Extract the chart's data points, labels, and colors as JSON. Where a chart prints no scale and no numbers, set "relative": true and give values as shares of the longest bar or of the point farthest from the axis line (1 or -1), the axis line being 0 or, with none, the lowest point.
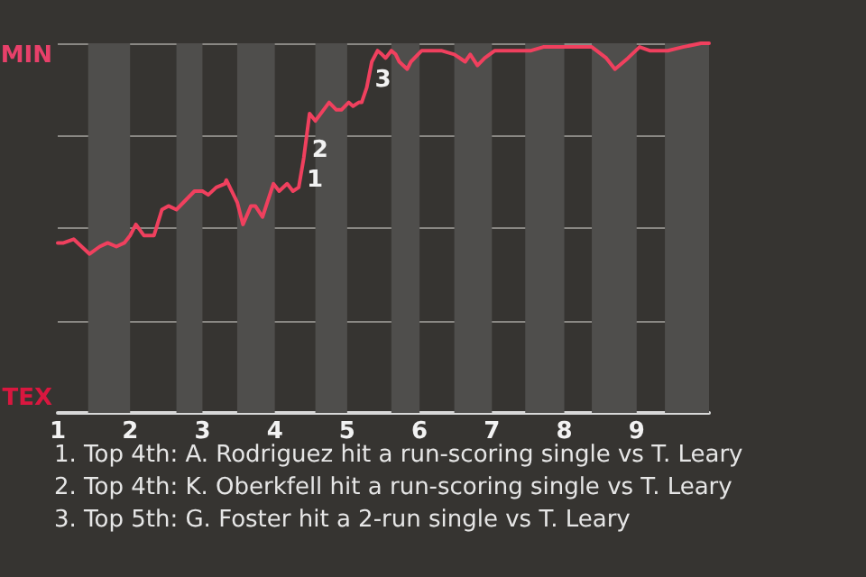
{
  "chart_data": {
    "type": "line",
    "relative": true,
    "x": [
      1.0,
      1.08,
      1.22,
      1.44,
      1.58,
      1.69,
      1.81,
      1.92,
      2.0,
      2.08,
      2.19,
      2.33,
      2.44,
      2.53,
      2.64,
      2.89,
      3.0,
      3.08,
      3.19,
      3.31,
      3.33,
      3.48,
      3.56,
      3.67,
      3.73,
      3.83,
      3.98,
      4.06,
      4.17,
      4.25,
      4.33,
      4.4,
      4.48,
      4.56,
      4.75,
      4.85,
      4.92,
      5.02,
      5.08,
      5.16,
      5.2,
      5.27,
      5.34,
      5.42,
      5.48,
      5.53,
      5.61,
      5.67,
      5.72,
      5.83,
      5.88,
      6.03,
      6.3,
      6.48,
      6.63,
      6.7,
      6.8,
      6.9,
      7.04,
      7.46,
      7.54,
      7.71,
      8.0,
      8.38,
      8.58,
      8.7,
      8.88,
      9.04,
      9.18,
      9.43,
      9.64,
      9.89,
      10.0
    ],
    "series": [
      {
        "color": "#f0405e",
        "values": [
          0.46,
          0.46,
          0.47,
          0.43,
          0.45,
          0.46,
          0.45,
          0.46,
          0.48,
          0.51,
          0.48,
          0.48,
          0.55,
          0.56,
          0.55,
          0.6,
          0.6,
          0.59,
          0.61,
          0.62,
          0.63,
          0.57,
          0.51,
          0.56,
          0.56,
          0.53,
          0.62,
          0.6,
          0.62,
          0.6,
          0.61,
          0.69,
          0.81,
          0.79,
          0.84,
          0.82,
          0.82,
          0.84,
          0.83,
          0.84,
          0.84,
          0.88,
          0.95,
          0.98,
          0.97,
          0.96,
          0.98,
          0.97,
          0.95,
          0.93,
          0.95,
          0.98,
          0.98,
          0.97,
          0.95,
          0.97,
          0.94,
          0.96,
          0.98,
          0.98,
          0.98,
          0.99,
          0.99,
          0.99,
          0.96,
          0.93,
          0.96,
          0.99,
          0.98,
          0.98,
          0.99,
          1.0,
          1.0
        ]
      }
    ],
    "xlim": [
      1,
      10
    ],
    "xticks": [
      1,
      2,
      3,
      4,
      5,
      6,
      7,
      8,
      9
    ],
    "grid": "y",
    "marker": "none",
    "line_style": "solid",
    "bands": [
      {
        "axis": "x",
        "from": 1.42,
        "to": 2,
        "color": "#4f4e4c"
      },
      {
        "axis": "x",
        "from": 2.64,
        "to": 3,
        "color": "#4f4e4c"
      },
      {
        "axis": "x",
        "from": 3.48,
        "to": 4,
        "color": "#4f4e4c"
      },
      {
        "axis": "x",
        "from": 4.56,
        "to": 5,
        "color": "#4f4e4c"
      },
      {
        "axis": "x",
        "from": 5.61,
        "to": 6,
        "color": "#4f4e4c"
      },
      {
        "axis": "x",
        "from": 6.48,
        "to": 7,
        "color": "#4f4e4c"
      },
      {
        "axis": "x",
        "from": 7.46,
        "to": 8,
        "color": "#4f4e4c"
      },
      {
        "axis": "x",
        "from": 8.38,
        "to": 9,
        "color": "#4f4e4c"
      },
      {
        "axis": "x",
        "from": 9.39,
        "to": 10,
        "color": "#4f4e4c"
      }
    ],
    "annotations": [
      "MIN",
      "TEX",
      {
        "text": "1",
        "x": 4.33,
        "y": 0.61
      },
      {
        "text": "2",
        "x": 4.4,
        "y": 0.69
      },
      {
        "text": "3",
        "x": 5.27,
        "y": 0.88
      },
      "1. Top 4th: A. Rodriguez hit a run-scoring single vs T. Leary",
      "2. Top 4th: K. Oberkfell hit a run-scoring single vs T. Leary",
      "3. Top 5th: G. Foster hit a 2-run single vs T. Leary"
    ]
  }
}
